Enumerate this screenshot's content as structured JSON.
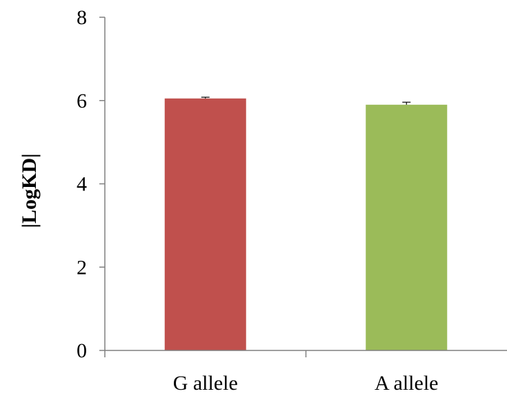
{
  "chart_data": {
    "type": "bar",
    "categories": [
      "G allele",
      "A allele"
    ],
    "values": [
      6.05,
      5.9
    ],
    "errors": [
      0.03,
      0.06
    ],
    "colors": [
      "#c0504d",
      "#9bbb59"
    ],
    "title": "",
    "xlabel": "",
    "ylabel": "|LogKD|",
    "ylim": [
      0,
      8
    ],
    "yticks": [
      "0",
      "2",
      "4",
      "6",
      "8"
    ],
    "grid": false,
    "legend": "none"
  }
}
